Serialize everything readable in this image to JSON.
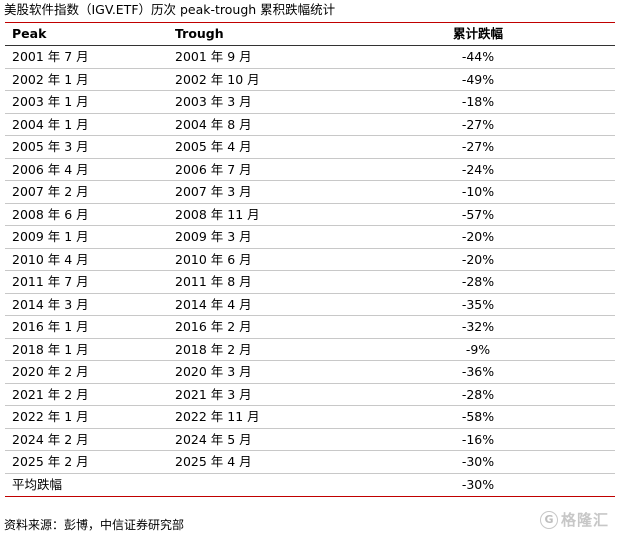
{
  "title": "美股软件指数（IGV.ETF）历次 peak-trough 累积跌幅统计",
  "headers": {
    "peak": "Peak",
    "trough": "Trough",
    "drawdown": "累计跌幅"
  },
  "rows": [
    {
      "peak": "2001 年 7 月",
      "trough": "2001 年 9 月",
      "drawdown": "-44%"
    },
    {
      "peak": "2002 年 1 月",
      "trough": "2002 年 10 月",
      "drawdown": "-49%"
    },
    {
      "peak": "2003 年 1 月",
      "trough": "2003 年 3 月",
      "drawdown": "-18%"
    },
    {
      "peak": "2004 年 1 月",
      "trough": "2004 年 8 月",
      "drawdown": "-27%"
    },
    {
      "peak": "2005 年 3 月",
      "trough": "2005 年 4 月",
      "drawdown": "-27%"
    },
    {
      "peak": "2006 年 4 月",
      "trough": "2006 年 7 月",
      "drawdown": "-24%"
    },
    {
      "peak": "2007 年 2 月",
      "trough": "2007 年 3 月",
      "drawdown": "-10%"
    },
    {
      "peak": "2008 年 6 月",
      "trough": "2008 年 11 月",
      "drawdown": "-57%"
    },
    {
      "peak": "2009 年 1 月",
      "trough": "2009 年 3 月",
      "drawdown": "-20%"
    },
    {
      "peak": "2010 年 4 月",
      "trough": "2010 年 6 月",
      "drawdown": "-20%"
    },
    {
      "peak": "2011 年 7 月",
      "trough": "2011 年 8 月",
      "drawdown": "-28%"
    },
    {
      "peak": "2014 年 3 月",
      "trough": "2014 年 4 月",
      "drawdown": "-35%"
    },
    {
      "peak": "2016 年 1 月",
      "trough": "2016 年 2 月",
      "drawdown": "-32%"
    },
    {
      "peak": "2018 年 1 月",
      "trough": "2018 年 2 月",
      "drawdown": "-9%"
    },
    {
      "peak": "2020 年 2 月",
      "trough": "2020 年 3 月",
      "drawdown": "-36%"
    },
    {
      "peak": "2021 年 2 月",
      "trough": "2021 年 3 月",
      "drawdown": "-28%"
    },
    {
      "peak": "2022 年 1 月",
      "trough": "2022 年 11 月",
      "drawdown": "-58%"
    },
    {
      "peak": "2024 年 2 月",
      "trough": "2024 年 5 月",
      "drawdown": "-16%"
    },
    {
      "peak": "2025 年 2 月",
      "trough": "2025 年 4 月",
      "drawdown": "-30%"
    }
  ],
  "average": {
    "label": "平均跌幅",
    "drawdown": "-30%"
  },
  "source": "资料来源：彭博，中信证券研究部",
  "watermark": {
    "icon": "gelonghui-logo-icon",
    "text": "格隆汇"
  }
}
